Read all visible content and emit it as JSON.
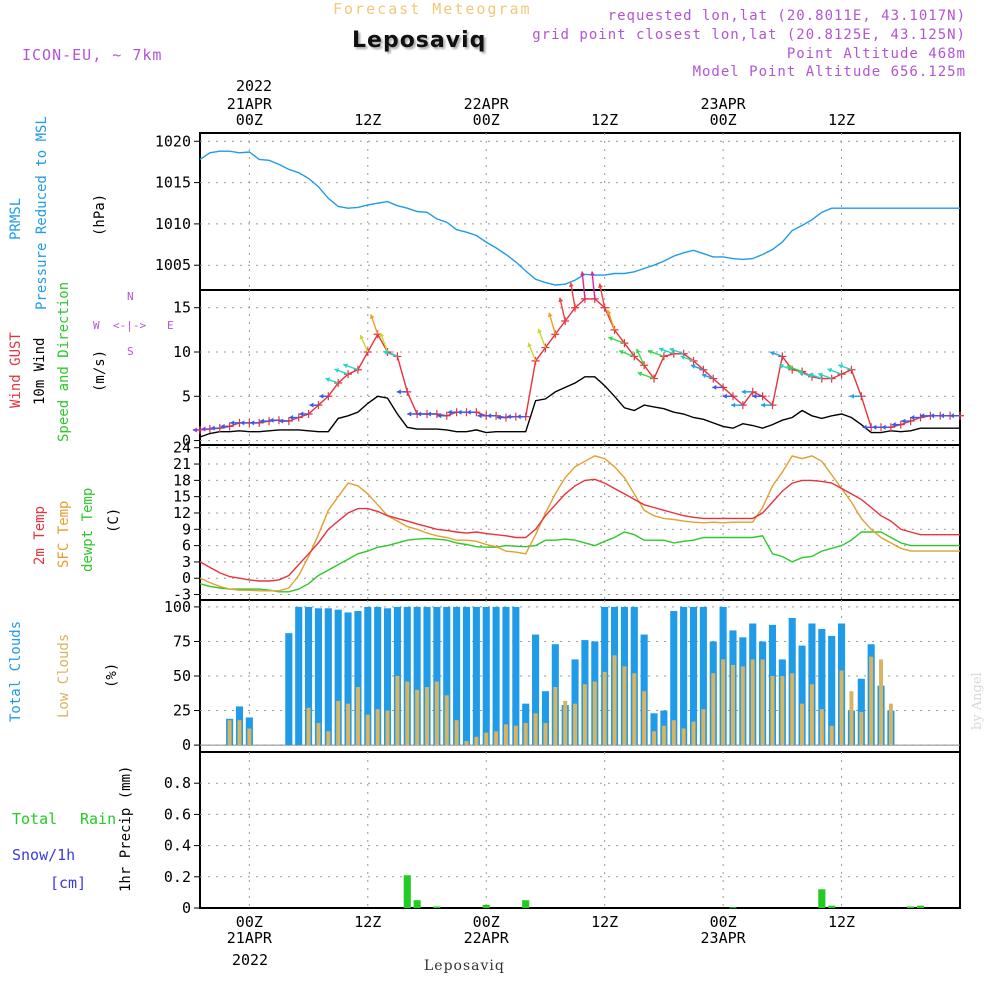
{
  "header": {
    "top_title": "Forecast Meteogram",
    "station": "Leposaviq",
    "model": "ICON-EU, ~ 7km",
    "requested": "requested lon,lat (20.8011E, 43.1017N)",
    "grid_point": "grid point closest lon,lat (20.8125E, 43.125N)",
    "point_alt": "Point Altitude 468m",
    "model_alt": "Model Point Altitude 656.125m"
  },
  "time_axis": {
    "top_year": "2022",
    "bottom_year": "2022",
    "labels": [
      {
        "hour": 0,
        "line1": "21APR",
        "line2": "00Z"
      },
      {
        "hour": 12,
        "line1": "",
        "line2": "12Z"
      },
      {
        "hour": 24,
        "line1": "22APR",
        "line2": "00Z"
      },
      {
        "hour": 36,
        "line1": "",
        "line2": "12Z"
      },
      {
        "hour": 48,
        "line1": "23APR",
        "line2": "00Z"
      },
      {
        "hour": 60,
        "line1": "",
        "line2": "12Z"
      }
    ],
    "start_hour": -5,
    "end_hour": 72
  },
  "footer": {
    "station": "Leposaviq",
    "signature": "by Angel"
  },
  "labels": {
    "prmsl": "PRMSL",
    "prmsl2": "Pressure Reduced to MSL",
    "hpa": "(hPa)",
    "gust": "Wind GUST",
    "wind10": "10m Wind",
    "speeddir": "Speed and Direction",
    "ms": "(m/s)",
    "compass_n": "N",
    "compass_s": "S",
    "compass_w": "W",
    "compass_e": "E",
    "temp2m": "2m Temp",
    "sfctemp": "SFC Temp",
    "dewpt": "dewpt Temp",
    "degc": "(C)",
    "totclouds": "Total Clouds",
    "lowclouds": "Low Clouds",
    "pct": "(%)",
    "totrain": "Total",
    "rain": "Rain",
    "snow": "Snow/1h",
    "cm": "[cm]",
    "precip": "1hr Precip (mm)"
  },
  "colors": {
    "pressure": "#1f9be8",
    "gust": "#e8323c",
    "wind": "#000000",
    "temp2m": "#e8323c",
    "sfc": "#e2a030",
    "dewpt": "#2ec82a",
    "totclouds": "#1f9be8",
    "lowclouds": "#d8b460",
    "precip": "#22cc22",
    "snow": "#3a3ae0"
  },
  "chart_data": [
    {
      "type": "line",
      "title": "PRMSL Pressure Reduced to MSL",
      "ylabel": "(hPa)",
      "ylim": [
        1002,
        1021
      ],
      "yticks": [
        1005,
        1010,
        1015,
        1020
      ],
      "x_hours": [
        -5,
        -4,
        -3,
        -2,
        -1,
        0,
        1,
        2,
        3,
        4,
        5,
        6,
        7,
        8,
        9,
        10,
        11,
        12,
        13,
        14,
        15,
        16,
        17,
        18,
        19,
        20,
        21,
        22,
        23,
        24,
        25,
        26,
        27,
        28,
        29,
        30,
        31,
        32,
        33,
        34,
        35,
        36,
        37,
        38,
        39,
        40,
        41,
        42,
        43,
        44,
        45,
        46,
        47,
        48,
        49,
        50,
        51,
        52,
        53,
        54,
        55,
        56,
        57,
        58,
        59,
        60,
        61,
        62,
        63,
        64,
        65,
        66,
        67,
        68,
        69,
        70,
        71,
        72
      ],
      "series": [
        {
          "name": "PRMSL",
          "values": [
            1017.8,
            1018.6,
            1018.8,
            1018.8,
            1018.6,
            1018.7,
            1017.8,
            1017.7,
            1017.2,
            1016.6,
            1016.2,
            1015.5,
            1014.5,
            1013.1,
            1012.1,
            1011.9,
            1012.0,
            1012.3,
            1012.5,
            1012.7,
            1012.2,
            1011.9,
            1011.5,
            1011.4,
            1010.6,
            1010.2,
            1009.3,
            1009.0,
            1008.6,
            1007.8,
            1007.1,
            1006.3,
            1005.4,
            1004.3,
            1003.3,
            1002.9,
            1002.6,
            1002.7,
            1003.2,
            1003.9,
            1003.8,
            1003.8,
            1004.0,
            1004.0,
            1004.2,
            1004.6,
            1005.0,
            1005.5,
            1006.1,
            1006.5,
            1006.8,
            1006.4,
            1006.0,
            1006.0,
            1005.8,
            1005.7,
            1005.8,
            1006.3,
            1006.9,
            1007.8,
            1009.2,
            1009.8,
            1010.5,
            1011.4,
            1011.9,
            1011.9,
            1011.9,
            1011.9,
            1011.9,
            1011.9,
            1011.9,
            1011.9,
            1011.9,
            1011.9,
            1011.9,
            1011.9,
            1011.9,
            1011.9
          ]
        }
      ]
    },
    {
      "type": "line",
      "title": "Wind GUST / 10m Wind Speed and Direction",
      "ylabel": "(m/s)",
      "ylim": [
        -0.5,
        17
      ],
      "yticks": [
        0,
        5,
        10,
        15
      ],
      "x_hours": [
        -5,
        -4,
        -3,
        -2,
        -1,
        0,
        1,
        2,
        3,
        4,
        5,
        6,
        7,
        8,
        9,
        10,
        11,
        12,
        13,
        14,
        15,
        16,
        17,
        18,
        19,
        20,
        21,
        22,
        23,
        24,
        25,
        26,
        27,
        28,
        29,
        30,
        31,
        32,
        33,
        34,
        35,
        36,
        37,
        38,
        39,
        40,
        41,
        42,
        43,
        44,
        45,
        46,
        47,
        48,
        49,
        50,
        51,
        52,
        53,
        54,
        55,
        56,
        57,
        58,
        59,
        60,
        61,
        62,
        63,
        64,
        65,
        66,
        67,
        68,
        69,
        70,
        71,
        72
      ],
      "series": [
        {
          "name": "Wind GUST",
          "values": [
            1.2,
            1.3,
            1.4,
            1.6,
            2.0,
            2.0,
            2.0,
            2.2,
            2.3,
            2.2,
            2.6,
            3.0,
            4.0,
            5.0,
            6.5,
            7.5,
            8.0,
            10.0,
            12.0,
            10.0,
            9.5,
            5.5,
            3.0,
            3.0,
            3.0,
            2.8,
            3.2,
            3.2,
            3.2,
            2.8,
            2.8,
            2.6,
            2.7,
            2.7,
            9.0,
            10.5,
            12.0,
            13.5,
            15.0,
            16.0,
            16.0,
            15.0,
            12.5,
            11.0,
            9.5,
            8.5,
            7.0,
            9.5,
            9.8,
            9.8,
            9.0,
            8.0,
            7.0,
            6.0,
            5.0,
            4.0,
            5.5,
            5.0,
            4.0,
            9.5,
            8.0,
            7.8,
            7.2,
            7.0,
            7.0,
            7.5,
            8.0,
            5.0,
            1.5,
            1.5,
            1.5,
            1.8,
            2.2,
            2.6,
            2.8,
            2.8,
            2.8,
            2.8
          ]
        },
        {
          "name": "10m Wind",
          "values": [
            0.4,
            0.8,
            1.0,
            1.0,
            1.1,
            1.0,
            1.0,
            1.1,
            1.2,
            1.2,
            1.2,
            1.1,
            1.0,
            1.0,
            2.5,
            2.8,
            3.2,
            4.2,
            5.0,
            4.8,
            3.0,
            1.5,
            1.3,
            1.3,
            1.3,
            1.2,
            1.0,
            1.0,
            1.2,
            0.9,
            1.0,
            1.0,
            1.0,
            1.0,
            4.5,
            4.7,
            5.5,
            6.0,
            6.5,
            7.2,
            7.2,
            6.2,
            5.0,
            3.7,
            3.4,
            4.0,
            3.8,
            3.6,
            3.2,
            3.0,
            2.6,
            2.4,
            2.0,
            1.6,
            1.4,
            1.9,
            1.7,
            1.4,
            1.8,
            2.3,
            2.6,
            3.4,
            2.8,
            2.5,
            2.8,
            3.0,
            2.6,
            1.8,
            0.9,
            0.9,
            1.1,
            1.0,
            1.1,
            1.4,
            1.4,
            1.4,
            1.4,
            1.4
          ]
        }
      ]
    },
    {
      "type": "line",
      "title": "2m Temp / SFC Temp / dewpt Temp",
      "ylabel": "(C)",
      "ylim": [
        -4,
        24.5
      ],
      "yticks": [
        -3,
        0,
        3,
        6,
        9,
        12,
        15,
        18,
        21,
        24
      ],
      "x_hours": [
        -5,
        -4,
        -3,
        -2,
        -1,
        0,
        1,
        2,
        3,
        4,
        5,
        6,
        7,
        8,
        9,
        10,
        11,
        12,
        13,
        14,
        15,
        16,
        17,
        18,
        19,
        20,
        21,
        22,
        23,
        24,
        25,
        26,
        27,
        28,
        29,
        30,
        31,
        32,
        33,
        34,
        35,
        36,
        37,
        38,
        39,
        40,
        41,
        42,
        43,
        44,
        45,
        46,
        47,
        48,
        49,
        50,
        51,
        52,
        53,
        54,
        55,
        56,
        57,
        58,
        59,
        60,
        61,
        62,
        63,
        64,
        65,
        66,
        67,
        68,
        69,
        70,
        71,
        72
      ],
      "series": [
        {
          "name": "2m Temp",
          "values": [
            3.0,
            2.0,
            1.0,
            0.3,
            0.0,
            -0.3,
            -0.5,
            -0.5,
            -0.3,
            0.5,
            2.5,
            4.5,
            6.5,
            9.0,
            10.5,
            12.0,
            12.8,
            12.8,
            12.3,
            11.5,
            11.0,
            10.5,
            10.0,
            9.5,
            9.0,
            8.8,
            8.5,
            8.3,
            8.5,
            8.2,
            8.0,
            7.8,
            7.5,
            7.5,
            9.0,
            11.5,
            13.5,
            15.5,
            17.0,
            18.0,
            18.2,
            17.5,
            16.5,
            15.5,
            14.5,
            13.5,
            13.0,
            12.5,
            12.0,
            11.5,
            11.2,
            11.0,
            11.0,
            11.0,
            11.0,
            11.0,
            11.0,
            12.0,
            14.0,
            16.0,
            17.5,
            18.0,
            18.0,
            17.8,
            17.5,
            16.5,
            15.5,
            14.5,
            13.0,
            11.5,
            10.5,
            9.0,
            8.5,
            8.0,
            8.0,
            8.0,
            8.0,
            8.0
          ]
        },
        {
          "name": "SFC Temp",
          "values": [
            0.0,
            -0.8,
            -1.5,
            -2.0,
            -2.2,
            -2.2,
            -2.3,
            -2.3,
            -2.3,
            -1.8,
            0.5,
            4.0,
            8.0,
            12.5,
            15.0,
            17.5,
            17.0,
            15.5,
            13.5,
            11.5,
            10.5,
            9.5,
            9.0,
            8.3,
            7.8,
            7.5,
            7.0,
            7.0,
            6.8,
            6.2,
            5.8,
            5.0,
            4.8,
            4.5,
            8.0,
            12.0,
            15.5,
            18.5,
            20.5,
            21.5,
            22.5,
            22.0,
            20.5,
            18.5,
            15.5,
            12.5,
            11.5,
            11.0,
            10.8,
            10.5,
            10.3,
            10.2,
            10.3,
            10.2,
            10.3,
            10.3,
            10.3,
            13.0,
            17.0,
            19.5,
            22.5,
            22.0,
            22.5,
            21.5,
            19.0,
            16.5,
            14.0,
            11.0,
            9.0,
            7.5,
            6.5,
            5.5,
            5.0,
            5.0,
            5.0,
            5.0,
            5.0,
            5.0
          ]
        },
        {
          "name": "dewpt Temp",
          "values": [
            -1.0,
            -1.5,
            -1.8,
            -2.0,
            -2.0,
            -2.0,
            -2.0,
            -2.2,
            -2.5,
            -2.5,
            -2.0,
            -1.0,
            0.5,
            1.5,
            2.5,
            3.5,
            4.5,
            5.0,
            5.7,
            6.0,
            6.5,
            7.0,
            7.2,
            7.3,
            7.2,
            7.0,
            6.5,
            6.2,
            5.8,
            5.7,
            5.7,
            6.0,
            5.9,
            5.8,
            6.0,
            7.0,
            7.0,
            7.2,
            7.0,
            6.5,
            6.0,
            6.8,
            7.5,
            8.5,
            8.0,
            7.0,
            7.0,
            7.0,
            6.5,
            6.8,
            7.0,
            7.5,
            7.5,
            7.5,
            7.5,
            7.5,
            7.5,
            7.8,
            4.5,
            4.0,
            3.0,
            3.8,
            4.0,
            5.0,
            5.5,
            6.0,
            7.0,
            8.5,
            8.5,
            8.5,
            7.5,
            6.5,
            6.0,
            6.0,
            6.0,
            6.0,
            6.0,
            6.0
          ]
        }
      ]
    },
    {
      "type": "bar",
      "title": "Total Clouds / Low Clouds",
      "ylabel": "(%)",
      "ylim": [
        -5,
        105
      ],
      "yticks": [
        0,
        25,
        50,
        75,
        100
      ],
      "x_hours": [
        -5,
        -4,
        -3,
        -2,
        -1,
        0,
        1,
        2,
        3,
        4,
        5,
        6,
        7,
        8,
        9,
        10,
        11,
        12,
        13,
        14,
        15,
        16,
        17,
        18,
        19,
        20,
        21,
        22,
        23,
        24,
        25,
        26,
        27,
        28,
        29,
        30,
        31,
        32,
        33,
        34,
        35,
        36,
        37,
        38,
        39,
        40,
        41,
        42,
        43,
        44,
        45,
        46,
        47,
        48,
        49,
        50,
        51,
        52,
        53,
        54,
        55,
        56,
        57,
        58,
        59,
        60,
        61,
        62,
        63,
        64,
        65,
        66,
        67,
        68,
        69,
        70,
        71,
        72
      ],
      "series": [
        {
          "name": "Total Clouds",
          "values": [
            0,
            0,
            0,
            19,
            28,
            20,
            0,
            0,
            0,
            81,
            100,
            100,
            99,
            99,
            98,
            96,
            97,
            100,
            100,
            99,
            100,
            100,
            100,
            100,
            100,
            100,
            100,
            100,
            100,
            100,
            100,
            100,
            100,
            30,
            80,
            39,
            73,
            29,
            62,
            76,
            75,
            100,
            100,
            100,
            100,
            80,
            23,
            25,
            97,
            100,
            100,
            100,
            75,
            100,
            83,
            78,
            88,
            75,
            87,
            62,
            92,
            72,
            88,
            84,
            79,
            88,
            25,
            48,
            73,
            43,
            25,
            0,
            0,
            0,
            0,
            0,
            0,
            0
          ]
        },
        {
          "name": "Low Clouds",
          "values": [
            0,
            0,
            0,
            18,
            18,
            12,
            0,
            0,
            0,
            0,
            0,
            27,
            16,
            10,
            32,
            30,
            42,
            22,
            26,
            25,
            50,
            46,
            40,
            42,
            46,
            36,
            18,
            3,
            6,
            9,
            10,
            15,
            14,
            16,
            23,
            16,
            42,
            32,
            30,
            44,
            46,
            53,
            65,
            57,
            52,
            39,
            10,
            14,
            18,
            12,
            17,
            26,
            52,
            62,
            58,
            57,
            62,
            62,
            50,
            50,
            52,
            30,
            44,
            26,
            14,
            54,
            39,
            24,
            64,
            62,
            30,
            0,
            0,
            0,
            0,
            0,
            0,
            0
          ]
        }
      ]
    },
    {
      "type": "bar",
      "title": "1hr Precip",
      "ylabel": "1hr Precip (mm)",
      "ylim": [
        0,
        1.0
      ],
      "yticks": [
        0,
        0.2,
        0.4,
        0.6,
        0.8
      ],
      "x_hours": [
        16,
        17,
        19,
        24,
        28,
        49,
        58,
        59,
        67,
        68
      ],
      "series": [
        {
          "name": "Total Rain",
          "values": [
            0.21,
            0.05,
            0.01,
            0.02,
            0.05,
            0.005,
            0.12,
            0.015,
            0.01,
            0.015
          ]
        },
        {
          "name": "Snow/1h",
          "values": [
            0,
            0,
            0,
            0,
            0,
            0,
            0,
            0,
            0,
            0
          ]
        }
      ]
    }
  ]
}
